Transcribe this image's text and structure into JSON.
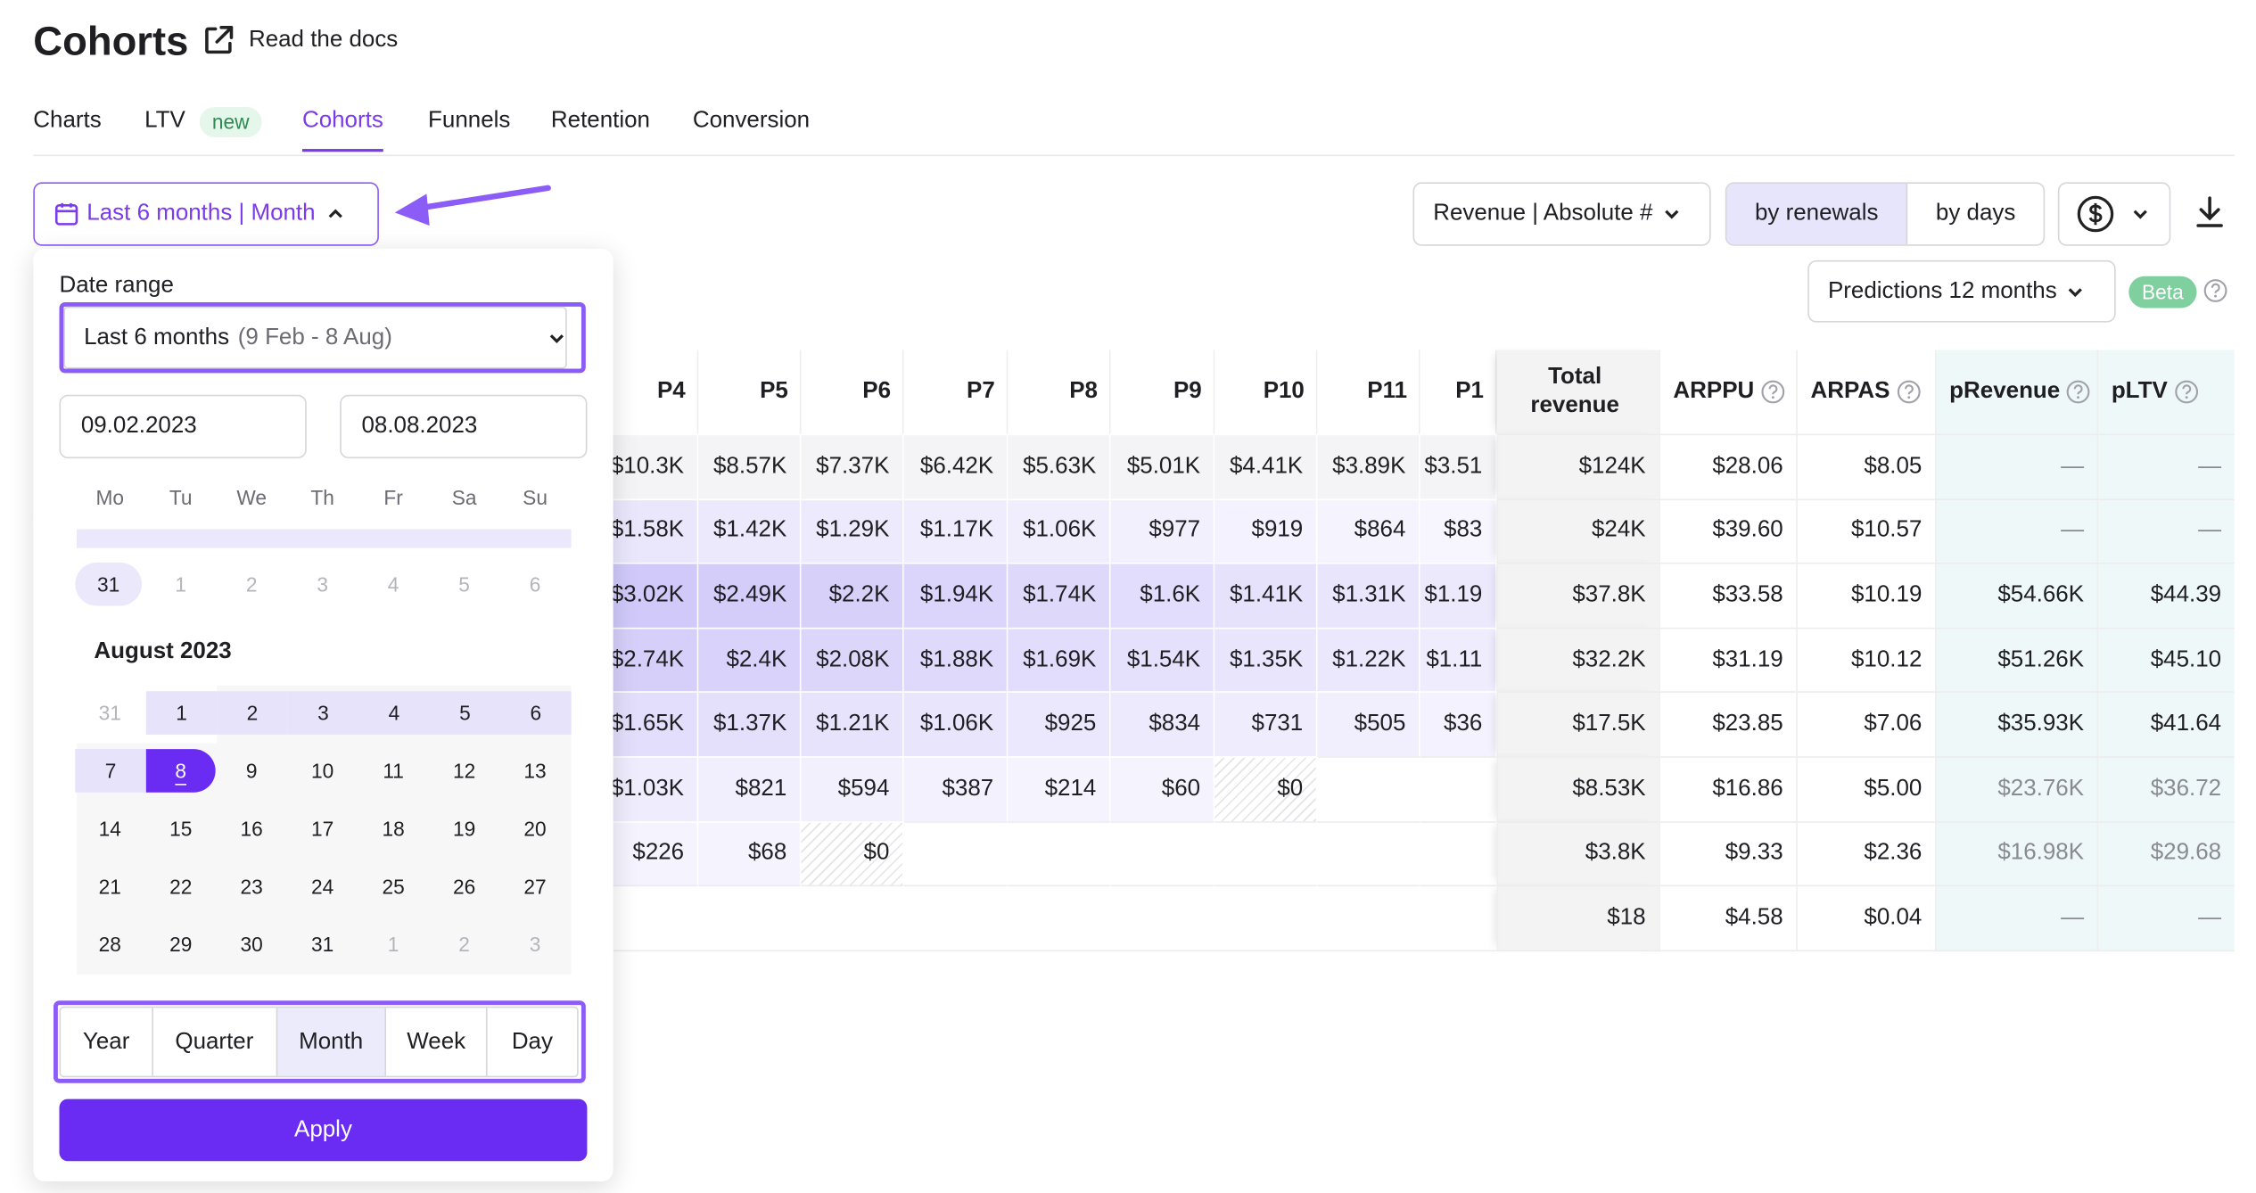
{
  "header": {
    "title": "Cohorts",
    "docs_link": "Read the docs"
  },
  "tabs": {
    "items": [
      "Charts",
      "LTV",
      "Cohorts",
      "Funnels",
      "Retention",
      "Conversion"
    ],
    "badge": "new",
    "active": "Cohorts"
  },
  "toolbar": {
    "date_button": "Last 6 months | Month",
    "metric": "Revenue | Absolute #",
    "group_by": [
      "by renewals",
      "by days"
    ],
    "group_active": "by renewals",
    "predictions": "Predictions 12 months",
    "beta": "Beta"
  },
  "table": {
    "columns": [
      "P4",
      "P5",
      "P6",
      "P7",
      "P8",
      "P9",
      "P10",
      "P11",
      "P1",
      "Total revenue",
      "ARPPU",
      "ARPAS",
      "pRevenue",
      "pLTV"
    ],
    "rows": [
      [
        "$10.3K",
        "$8.57K",
        "$7.37K",
        "$6.42K",
        "$5.63K",
        "$5.01K",
        "$4.41K",
        "$3.89K",
        "$3.51",
        "$124K",
        "$28.06",
        "$8.05",
        "—",
        "—"
      ],
      [
        "$1.58K",
        "$1.42K",
        "$1.29K",
        "$1.17K",
        "$1.06K",
        "$977",
        "$919",
        "$864",
        "$83",
        "$24K",
        "$39.60",
        "$10.57",
        "—",
        "—"
      ],
      [
        "$3.02K",
        "$2.49K",
        "$2.2K",
        "$1.94K",
        "$1.74K",
        "$1.6K",
        "$1.41K",
        "$1.31K",
        "$1.19",
        "$37.8K",
        "$33.58",
        "$10.19",
        "$54.66K",
        "$44.39"
      ],
      [
        "$2.74K",
        "$2.4K",
        "$2.08K",
        "$1.88K",
        "$1.69K",
        "$1.54K",
        "$1.35K",
        "$1.22K",
        "$1.11",
        "$32.2K",
        "$31.19",
        "$10.12",
        "$51.26K",
        "$45.10"
      ],
      [
        "$1.65K",
        "$1.37K",
        "$1.21K",
        "$1.06K",
        "$925",
        "$834",
        "$731",
        "$505",
        "$36",
        "$17.5K",
        "$23.85",
        "$7.06",
        "$35.93K",
        "$41.64"
      ],
      [
        "$1.03K",
        "$821",
        "$594",
        "$387",
        "$214",
        "$60",
        "$0",
        null,
        null,
        "$8.53K",
        "$16.86",
        "$5.00",
        "$23.76K",
        "$36.72"
      ],
      [
        "$226",
        "$68",
        "$0",
        null,
        null,
        null,
        null,
        null,
        null,
        "$3.8K",
        "$9.33",
        "$2.36",
        "$16.98K",
        "$29.68"
      ],
      [
        null,
        null,
        null,
        null,
        null,
        null,
        null,
        null,
        null,
        "$18",
        "$4.58",
        "$0.04",
        "—",
        "—"
      ]
    ]
  },
  "date_picker": {
    "label": "Date range",
    "preset": "Last 6 months",
    "preset_range": "(9 Feb - 8 Aug)",
    "start": "09.02.2023",
    "end": "08.08.2023",
    "weekdays": [
      "Mo",
      "Tu",
      "We",
      "Th",
      "Fr",
      "Sa",
      "Su"
    ],
    "prev_month_row": [
      "31",
      "1",
      "2",
      "3",
      "4",
      "5",
      "6"
    ],
    "month_title": "August 2023",
    "weeks": [
      [
        "31",
        "1",
        "2",
        "3",
        "4",
        "5",
        "6"
      ],
      [
        "7",
        "8",
        "9",
        "10",
        "11",
        "12",
        "13"
      ],
      [
        "14",
        "15",
        "16",
        "17",
        "18",
        "19",
        "20"
      ],
      [
        "21",
        "22",
        "23",
        "24",
        "25",
        "26",
        "27"
      ],
      [
        "28",
        "29",
        "30",
        "31",
        "1",
        "2",
        "3"
      ]
    ],
    "selected": "8",
    "granularity": [
      "Year",
      "Quarter",
      "Month",
      "Week",
      "Day"
    ],
    "granularity_active": "Month",
    "apply": "Apply"
  }
}
